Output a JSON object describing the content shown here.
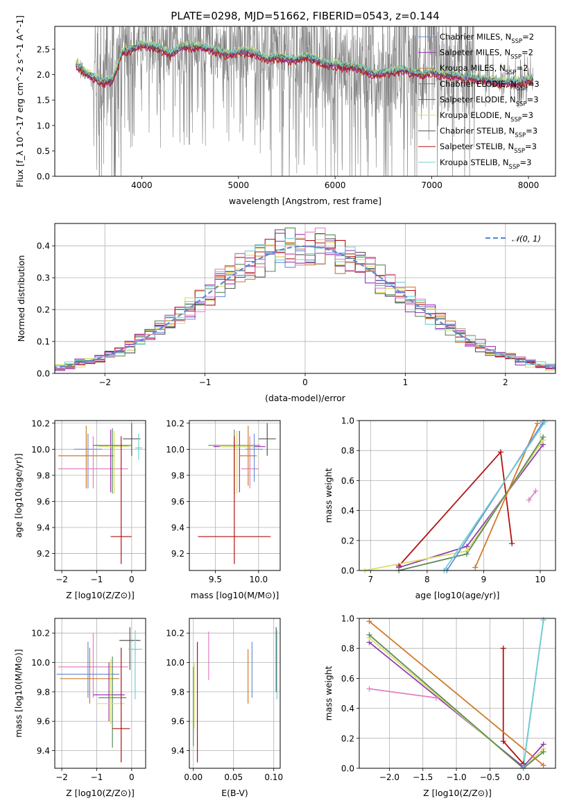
{
  "figure": {
    "title": "PLATE=0298, MJD=51662, FIBERID=0543, z=0.144"
  },
  "colors": {
    "chabrier_miles": "#6a8fd8",
    "salpeter_miles": "#9a2fb0",
    "kroupa_miles": "#d07a2a",
    "chabrier_elodie": "#5a8a5a",
    "salpeter_elodie": "#8e3cb8",
    "kroupa_elodie": "#d8e060",
    "chabrier_stelib": "#555555",
    "salpeter_stelib": "#b01010",
    "kroupa_stelib": "#70d0d0",
    "data": "#808080",
    "extra_pink": "#e080c0",
    "normal_curve": "#5b8bd6"
  },
  "chart_data": [
    {
      "id": "spectrum",
      "type": "line",
      "xlabel": "wavelength [Angstrom, rest frame]",
      "ylabel": "Flux [f_λ 10^-17 erg cm^-2 s^-1 A^-1]",
      "xlim": [
        3100,
        8280
      ],
      "ylim": [
        0,
        2.95
      ],
      "xticks": [
        4000,
        5000,
        6000,
        7000,
        8000
      ],
      "yticks": [
        0.0,
        0.5,
        1.0,
        1.5,
        2.0,
        2.5
      ],
      "legend_position": "right",
      "legend": [
        {
          "label": "Chabrier MILES, N",
          "sub": "SSP",
          "tail": "=2",
          "color": "#6a8fd8"
        },
        {
          "label": "Salpeter MILES, N",
          "sub": "SSP",
          "tail": "=2",
          "color": "#9a2fb0"
        },
        {
          "label": "Kroupa MILES, N",
          "sub": "SSP",
          "tail": "=2",
          "color": "#d07a2a"
        },
        {
          "label": "Chabrier ELODIE, N",
          "sub": "SSP",
          "tail": "=3",
          "color": "#5a8a5a"
        },
        {
          "label": "Salpeter ELODIE, N",
          "sub": "SSP",
          "tail": "=3",
          "color": "#8e3cb8"
        },
        {
          "label": "Kroupa ELODIE, N",
          "sub": "SSP",
          "tail": "=3",
          "color": "#d8e060"
        },
        {
          "label": "Chabrier STELIB, N",
          "sub": "SSP",
          "tail": "=3",
          "color": "#555555"
        },
        {
          "label": "Salpeter STELIB, N",
          "sub": "SSP",
          "tail": "=3",
          "color": "#b01010"
        },
        {
          "label": "Kroupa STELIB, N",
          "sub": "SSP",
          "tail": "=3",
          "color": "#70d0d0"
        }
      ],
      "model_x": [
        3320,
        3400,
        3500,
        3600,
        3700,
        3800,
        3900,
        4000,
        4100,
        4200,
        4300,
        4400,
        4500,
        4600,
        4700,
        4800,
        4900,
        5000,
        5100,
        5200,
        5300,
        5400,
        5500,
        5600,
        5700,
        5800,
        5900,
        6000,
        6100,
        6200,
        6300,
        6400,
        6500,
        6600,
        6700,
        6800,
        6900,
        7000,
        7100,
        7200,
        7300,
        7400,
        7500,
        7600,
        7700,
        7800,
        7900,
        8000
      ],
      "model_y": [
        2.2,
        2.05,
        1.95,
        1.85,
        1.9,
        2.45,
        2.5,
        2.6,
        2.55,
        2.5,
        2.4,
        2.55,
        2.55,
        2.55,
        2.5,
        2.45,
        2.4,
        2.45,
        2.45,
        2.4,
        2.3,
        2.35,
        2.3,
        2.3,
        2.35,
        2.3,
        2.2,
        2.2,
        2.15,
        2.15,
        2.1,
        2.0,
        2.05,
        2.05,
        2.1,
        2.05,
        2.0,
        2.05,
        2.0,
        2.0,
        1.95,
        1.95,
        1.9,
        1.9,
        1.85,
        1.85,
        1.85,
        1.9
      ]
    },
    {
      "id": "residuals",
      "type": "histogram",
      "xlabel": "(data-model)/error",
      "ylabel": "Normed distribution",
      "xlim": [
        -2.5,
        2.5
      ],
      "ylim": [
        0,
        0.47
      ],
      "xticks": [
        -2,
        -1,
        0,
        1,
        2
      ],
      "yticks": [
        0.0,
        0.1,
        0.2,
        0.3,
        0.4
      ],
      "legend_position": "upper right",
      "legend": [
        {
          "label": "𝒩(0, 1)",
          "color": "#5b8bd6",
          "style": "dashed"
        }
      ],
      "bin_width": 0.1,
      "curve": "normal pdf, mean 0, sigma 1"
    },
    {
      "id": "age_vs_Z",
      "type": "scatter",
      "xlabel": "Z [log10(Z/Z⊙)]",
      "ylabel": "age  [log10(age/yr)]",
      "xlim": [
        -2.2,
        0.4
      ],
      "ylim": [
        9.07,
        10.22
      ],
      "xticks": [
        -2,
        -1,
        0
      ],
      "yticks": [
        9.2,
        9.4,
        9.6,
        9.8,
        10.0,
        10.2
      ],
      "points": [
        {
          "x": -1.25,
          "y": 10.0,
          "xerr": 0.4,
          "yerr": [
            9.7,
            10.12
          ],
          "color": "#6a8fd8"
        },
        {
          "x": -1.3,
          "y": 9.95,
          "xerr": 0.8,
          "yerr": [
            9.7,
            10.18
          ],
          "color": "#d07a2a"
        },
        {
          "x": -1.1,
          "y": 9.85,
          "xerr": 1.0,
          "yerr": [
            9.7,
            10.1
          ],
          "color": "#e080c0"
        },
        {
          "x": -0.6,
          "y": 10.03,
          "xerr": 0.5,
          "yerr": [
            9.67,
            10.15
          ],
          "color": "#9a2fb0"
        },
        {
          "x": -0.5,
          "y": 10.02,
          "xerr": 0.45,
          "yerr": [
            9.66,
            10.14
          ],
          "color": "#d8e060"
        },
        {
          "x": -0.55,
          "y": 10.03,
          "xerr": 0.55,
          "yerr": [
            9.66,
            10.16
          ],
          "color": "#5a8a5a"
        },
        {
          "x": -0.3,
          "y": 9.33,
          "xerr": 0.3,
          "yerr": [
            9.12,
            10.1
          ],
          "color": "#b01010"
        },
        {
          "x": 0.0,
          "y": 10.08,
          "xerr": 0.25,
          "yerr": [
            9.95,
            10.2
          ],
          "color": "#555555"
        },
        {
          "x": 0.2,
          "y": 10.01,
          "xerr": 0.1,
          "yerr": [
            9.92,
            10.12
          ],
          "color": "#70d0d0"
        }
      ]
    },
    {
      "id": "age_vs_mass",
      "type": "scatter",
      "xlabel": "mass [log10(M/M⊙)]",
      "xlim": [
        9.2,
        10.25
      ],
      "ylim": [
        9.07,
        10.22
      ],
      "xticks": [
        9.5,
        10.0
      ],
      "yticks": [
        9.2,
        9.4,
        9.6,
        9.8,
        10.0,
        10.2
      ],
      "points": [
        {
          "x": 9.72,
          "y": 10.03,
          "xerr": 0.3,
          "yerr": [
            9.66,
            10.15
          ],
          "color": "#5a8a5a"
        },
        {
          "x": 9.78,
          "y": 10.02,
          "xerr": 0.3,
          "yerr": [
            9.67,
            10.14
          ],
          "color": "#9a2fb0"
        },
        {
          "x": 9.75,
          "y": 10.02,
          "xerr": 0.2,
          "yerr": [
            9.66,
            10.14
          ],
          "color": "#d8e060"
        },
        {
          "x": 9.72,
          "y": 9.33,
          "xerr": 0.42,
          "yerr": [
            9.12,
            10.1
          ],
          "color": "#b01010"
        },
        {
          "x": 9.9,
          "y": 9.85,
          "xerr": 0.1,
          "yerr": [
            9.7,
            10.1
          ],
          "color": "#e080c0"
        },
        {
          "x": 9.95,
          "y": 10.0,
          "xerr": 0.1,
          "yerr": [
            9.75,
            10.12
          ],
          "color": "#6a8fd8"
        },
        {
          "x": 10.1,
          "y": 10.08,
          "xerr": 0.1,
          "yerr": [
            9.95,
            10.2
          ],
          "color": "#555555"
        },
        {
          "x": 9.88,
          "y": 9.95,
          "xerr": 0.1,
          "yerr": [
            9.72,
            10.18
          ],
          "color": "#d07a2a"
        }
      ]
    },
    {
      "id": "massweight_vs_age",
      "type": "line",
      "xlabel": "age  [log10(age/yr)]",
      "ylabel": "mass weight",
      "xlim": [
        6.8,
        10.27
      ],
      "ylim": [
        0,
        1.0
      ],
      "xticks": [
        7,
        8,
        9,
        10
      ],
      "yticks": [
        0.0,
        0.2,
        0.4,
        0.6,
        0.8,
        1.0
      ],
      "series": [
        {
          "color": "#b01010",
          "x": [
            7.5,
            9.3,
            9.5
          ],
          "y": [
            0.03,
            0.79,
            0.18
          ]
        },
        {
          "color": "#8e3cb8",
          "x": [
            7.5,
            8.7,
            10.05
          ],
          "y": [
            0.02,
            0.16,
            0.84
          ]
        },
        {
          "color": "#d8e060",
          "x": [
            6.9,
            8.7,
            10.05
          ],
          "y": [
            0.0,
            0.13,
            0.87
          ]
        },
        {
          "color": "#5a8a5a",
          "x": [
            7.5,
            8.7,
            10.05
          ],
          "y": [
            0.0,
            0.11,
            0.89
          ]
        },
        {
          "color": "#d07a2a",
          "x": [
            8.85,
            9.95
          ],
          "y": [
            0.02,
            0.98
          ]
        },
        {
          "color": "#6a8fd8",
          "x": [
            8.35,
            10.05
          ],
          "y": [
            0.0,
            0.99
          ]
        },
        {
          "color": "#70d0d0",
          "x": [
            8.3,
            10.08
          ],
          "y": [
            0.0,
            0.99
          ]
        },
        {
          "color": "#e080c0",
          "x": [
            9.8,
            9.92
          ],
          "y": [
            0.47,
            0.53
          ]
        }
      ]
    },
    {
      "id": "mass_vs_Z",
      "type": "scatter",
      "xlabel": "Z [log10(Z/Z⊙)]",
      "ylabel": "mass [log10(M/M⊙)]",
      "xlim": [
        -2.2,
        0.4
      ],
      "ylim": [
        9.28,
        10.3
      ],
      "xticks": [
        -2,
        -1,
        0
      ],
      "yticks": [
        9.4,
        9.6,
        9.8,
        10.0,
        10.2
      ],
      "points": [
        {
          "x": -1.1,
          "y": 9.97,
          "xerr": 1.0,
          "yerr": [
            9.76,
            10.2
          ],
          "color": "#e080c0"
        },
        {
          "x": -1.25,
          "y": 9.92,
          "xerr": 0.9,
          "yerr": [
            9.76,
            10.14
          ],
          "color": "#6a8fd8"
        },
        {
          "x": -1.2,
          "y": 9.89,
          "xerr": 0.85,
          "yerr": [
            9.72,
            10.1
          ],
          "color": "#d07a2a"
        },
        {
          "x": -0.65,
          "y": 9.78,
          "xerr": 0.45,
          "yerr": [
            9.6,
            10.0
          ],
          "color": "#9a2fb0"
        },
        {
          "x": -0.55,
          "y": 9.76,
          "xerr": 0.4,
          "yerr": [
            9.42,
            10.04
          ],
          "color": "#5a8a5a"
        },
        {
          "x": -0.6,
          "y": 9.72,
          "xerr": 0.4,
          "yerr": [
            9.58,
            10.02
          ],
          "color": "#d8e060"
        },
        {
          "x": -0.3,
          "y": 9.55,
          "xerr": 0.25,
          "yerr": [
            9.32,
            10.1
          ],
          "color": "#b01010"
        },
        {
          "x": -0.05,
          "y": 10.15,
          "xerr": 0.3,
          "yerr": [
            9.95,
            10.24
          ],
          "color": "#555555"
        },
        {
          "x": 0.1,
          "y": 10.09,
          "xerr": 0.2,
          "yerr": [
            9.75,
            10.22
          ],
          "color": "#70d0d0"
        }
      ]
    },
    {
      "id": "mass_vs_EBV",
      "type": "scatter",
      "xlabel": "E(B-V)",
      "xlim": [
        -0.005,
        0.108
      ],
      "ylim": [
        9.28,
        10.3
      ],
      "xticks": [
        0.0,
        0.05,
        0.1
      ],
      "yticks": [
        9.4,
        9.6,
        9.8,
        10.0,
        10.2
      ],
      "points": [
        {
          "x": 0.0,
          "y": 9.5,
          "yerr": [
            9.43,
            9.97
          ],
          "color": "#5a8a5a"
        },
        {
          "x": 0.001,
          "y": 9.6,
          "yerr": [
            9.55,
            10.0
          ],
          "color": "#d8e060"
        },
        {
          "x": 0.005,
          "y": 9.55,
          "yerr": [
            9.32,
            10.14
          ],
          "color": "#b01010"
        },
        {
          "x": 0.019,
          "y": 10.0,
          "yerr": [
            9.88,
            10.21
          ],
          "color": "#e080c0"
        },
        {
          "x": 0.068,
          "y": 9.9,
          "yerr": [
            9.72,
            10.09
          ],
          "color": "#d07a2a"
        },
        {
          "x": 0.073,
          "y": 9.95,
          "yerr": [
            9.76,
            10.14
          ],
          "color": "#6a8fd8"
        },
        {
          "x": 0.103,
          "y": 10.0,
          "yerr": [
            9.8,
            10.24
          ],
          "color": "#555555"
        },
        {
          "x": 0.104,
          "y": 9.95,
          "yerr": [
            9.75,
            10.22
          ],
          "color": "#70d0d0"
        }
      ]
    },
    {
      "id": "massweight_vs_Z",
      "type": "line",
      "xlabel": "Z [log10(Z/Z⊙)]",
      "ylabel": "mass weight",
      "xlim": [
        -2.45,
        0.48
      ],
      "ylim": [
        0,
        1.0
      ],
      "xticks": [
        -2.0,
        -1.5,
        -1.0,
        -0.5,
        0.0
      ],
      "yticks": [
        0.0,
        0.2,
        0.4,
        0.6,
        0.8,
        1.0
      ],
      "series": [
        {
          "color": "#b01010",
          "x": [
            -0.3,
            -0.3,
            0.0
          ],
          "y": [
            0.8,
            0.18,
            0.03
          ]
        },
        {
          "color": "#e080c0",
          "x": [
            -2.3,
            -1.3
          ],
          "y": [
            0.53,
            0.47
          ]
        },
        {
          "color": "#8e3cb8",
          "x": [
            -2.3,
            0.0,
            0.3
          ],
          "y": [
            0.84,
            0.01,
            0.16
          ]
        },
        {
          "color": "#d8e060",
          "x": [
            -2.3,
            0.0,
            0.3
          ],
          "y": [
            0.87,
            0.0,
            0.13
          ]
        },
        {
          "color": "#5a8a5a",
          "x": [
            -2.3,
            0.0,
            0.3
          ],
          "y": [
            0.89,
            0.0,
            0.11
          ]
        },
        {
          "color": "#d07a2a",
          "x": [
            -2.3,
            0.3
          ],
          "y": [
            0.98,
            0.02
          ]
        },
        {
          "color": "#6a8fd8",
          "x": [
            0.0,
            0.3
          ],
          "y": [
            0.01,
            0.99
          ]
        },
        {
          "color": "#70d0d0",
          "x": [
            0.0,
            0.3
          ],
          "y": [
            0.0,
            0.99
          ]
        }
      ]
    }
  ]
}
